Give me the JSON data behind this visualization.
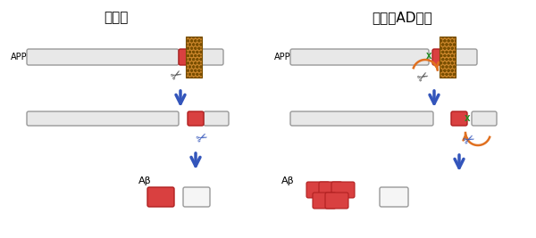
{
  "title_left": "健常者",
  "title_right": "家族性AD患者",
  "bg_color": "#ffffff",
  "bar_gray_light": "#e8e8e8",
  "bar_gray_stroke": "#999999",
  "bar_red": "#d94040",
  "bar_red_stroke": "#b02020",
  "bar_green": "#228B22",
  "membrane_color": "#c8842a",
  "membrane_stroke": "#7a4f00",
  "arrow_blue": "#3355bb",
  "arrow_orange": "#e07020",
  "scissors_dark": "#444444",
  "scissors_blue": "#3355bb",
  "app_label": "APP",
  "abeta_label": "Aβ",
  "title_fontsize": 11,
  "label_fontsize": 7,
  "abeta_fontsize": 8
}
